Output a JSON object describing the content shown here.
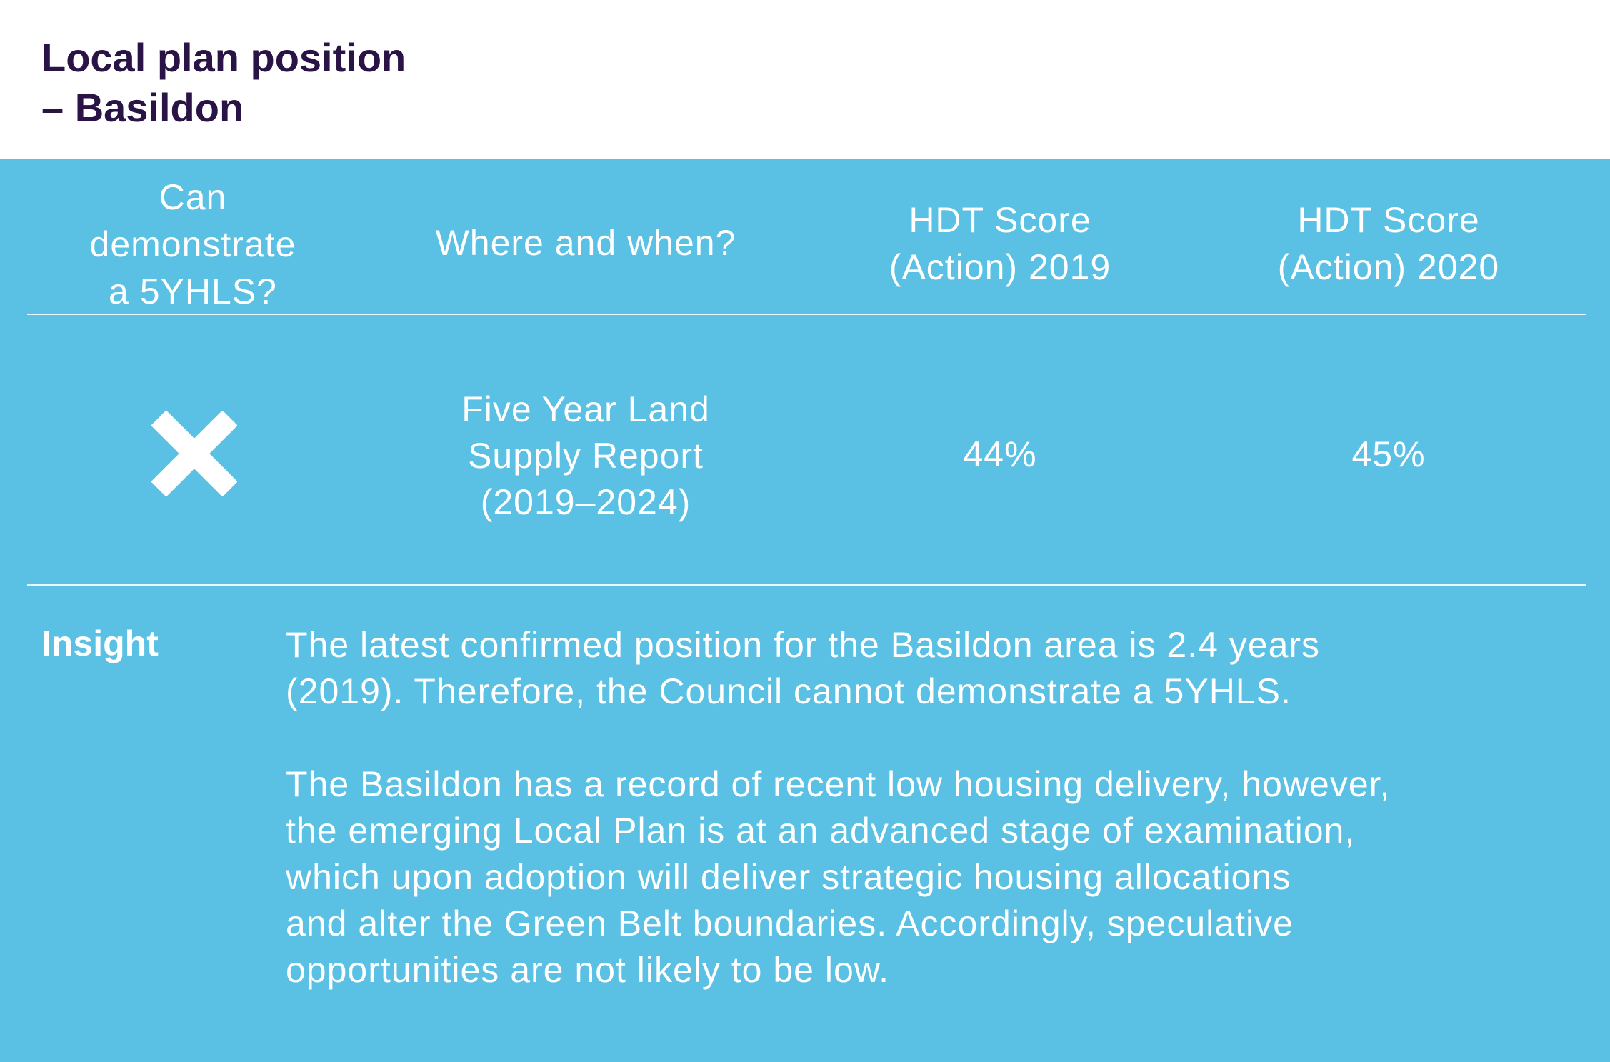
{
  "title": {
    "line1": "Local plan position",
    "line2": "– Basildon"
  },
  "table": {
    "headers": {
      "col1": [
        "Can",
        "demonstrate",
        "a 5YHLS?"
      ],
      "col2": [
        "Where and when?"
      ],
      "col3": [
        "HDT Score",
        "(Action) 2019"
      ],
      "col4": [
        "HDT Score",
        "(Action) 2020"
      ]
    },
    "row": {
      "five_yhls_icon": "cross-icon",
      "where_when": [
        "Five Year Land",
        "Supply Report",
        "(2019–2024)"
      ],
      "hdt_2019": "44%",
      "hdt_2020": "45%"
    }
  },
  "insight": {
    "label": "Insight",
    "paragraph1": [
      "The latest confirmed position for the Basildon area is 2.4 years",
      "(2019). Therefore, the Council cannot demonstrate a 5YHLS."
    ],
    "paragraph2": [
      "The Basildon has a record of recent low housing delivery, however,",
      "the emerging Local Plan is at an advanced stage of examination,",
      "which upon adoption will deliver strategic housing allocations",
      "and alter the Green Belt boundaries. Accordingly, speculative",
      "opportunities are not likely to be low."
    ]
  },
  "colors": {
    "panel": "#5bc1e4",
    "title": "#2a1446",
    "text": "#ffffff"
  }
}
